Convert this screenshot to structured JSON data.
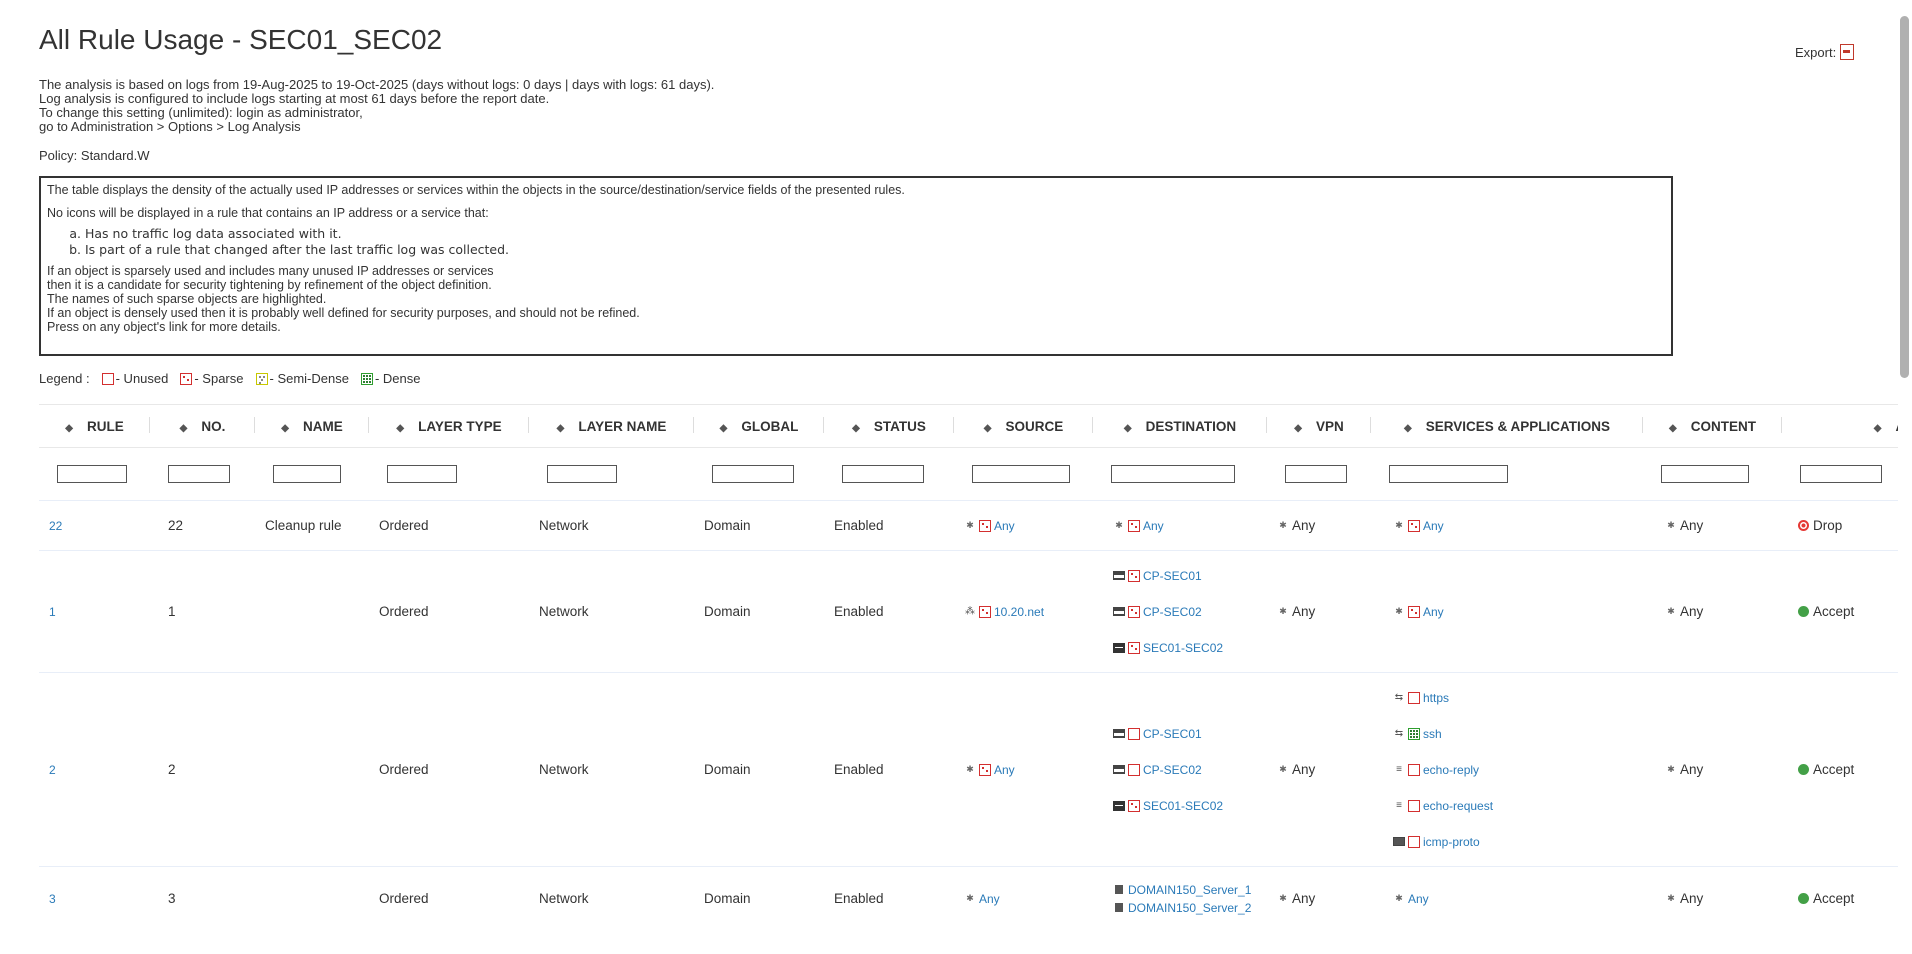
{
  "title": "All Rule Usage - SEC01_SEC02",
  "export_label": "Export:",
  "intro_lines": [
    "The analysis is based on logs from 19-Aug-2025 to 19-Oct-2025 (days without logs: 0 days | days with logs: 61 days).",
    "Log analysis is configured to include logs starting at most 61 days before the report date.",
    "To change this setting (unlimited): login as administrator,",
    "go to Administration > Options > Log Analysis"
  ],
  "policy": "Policy: Standard.W",
  "infobox": {
    "p1": "The table displays the density of the actually used IP addresses or services within the objects in the source/destination/service fields of the presented rules.",
    "p2": "No icons will be displayed in a rule that contains an IP address or a service that:",
    "items": [
      "Has no traffic log data associated with it.",
      "Is part of a rule that changed after the last traffic log was collected."
    ],
    "lines": [
      "If an object is sparsely used and includes many unused IP addresses or services",
      "then it is a candidate for security tightening by refinement of the object definition.",
      "The names of such sparse objects are highlighted.",
      "If an object is densely used then it is probably well defined for security purposes, and should not be refined.",
      "Press on any object's link for more details."
    ]
  },
  "legend": {
    "label": "Legend :",
    "unused": "- Unused",
    "sparse": "- Sparse",
    "semi": "- Semi-Dense",
    "dense": "- Dense"
  },
  "columns": [
    "RULE",
    "NO.",
    "NAME",
    "LAYER TYPE",
    "LAYER NAME",
    "GLOBAL",
    "STATUS",
    "SOURCE",
    "DESTINATION",
    "VPN",
    "SERVICES & APPLICATIONS",
    "CONTENT",
    "ACTION"
  ],
  "rows": [
    {
      "rule": "22",
      "no": "22",
      "name": "Cleanup rule",
      "layer_type": "Ordered",
      "layer_name": "Network",
      "global": "Domain",
      "status": "Enabled",
      "source": [
        {
          "icon": "asterisk-icon",
          "density": "sparse",
          "label": "Any"
        }
      ],
      "destination": [
        {
          "icon": "asterisk-icon",
          "density": "sparse",
          "label": "Any"
        }
      ],
      "vpn": "Any",
      "services": [
        {
          "icon": "asterisk-icon",
          "density": "sparse",
          "label": "Any"
        }
      ],
      "content": "Any",
      "action": "Drop",
      "action_color": "#e53935"
    },
    {
      "rule": "1",
      "no": "1",
      "name": "",
      "layer_type": "Ordered",
      "layer_name": "Network",
      "global": "Domain",
      "status": "Enabled",
      "source": [
        {
          "icon": "network-icon",
          "density": "sparse",
          "label": "10.20.net"
        }
      ],
      "destination": [
        {
          "icon": "gateway-icon",
          "density": "sparse",
          "label": "CP-SEC01"
        },
        {
          "icon": "gateway-icon",
          "density": "sparse",
          "label": "CP-SEC02"
        },
        {
          "icon": "cluster-icon",
          "density": "sparse",
          "label": "SEC01-SEC02"
        }
      ],
      "vpn": "Any",
      "services": [
        {
          "icon": "asterisk-icon",
          "density": "sparse",
          "label": "Any"
        }
      ],
      "content": "Any",
      "action": "Accept",
      "action_color": "#43a047"
    },
    {
      "rule": "2",
      "no": "2",
      "name": "",
      "layer_type": "Ordered",
      "layer_name": "Network",
      "global": "Domain",
      "status": "Enabled",
      "source": [
        {
          "icon": "asterisk-icon",
          "density": "sparse",
          "label": "Any"
        }
      ],
      "destination": [
        {
          "icon": "gateway-icon",
          "density": "unused",
          "label": "CP-SEC01"
        },
        {
          "icon": "gateway-icon",
          "density": "unused",
          "label": "CP-SEC02"
        },
        {
          "icon": "cluster-icon",
          "density": "sparse",
          "label": "SEC01-SEC02"
        }
      ],
      "vpn": "Any",
      "services": [
        {
          "icon": "tcp-service-icon",
          "density": "unused",
          "label": "https"
        },
        {
          "icon": "tcp-service-icon",
          "density": "dense",
          "label": "ssh"
        },
        {
          "icon": "icmp-service-icon",
          "density": "unused",
          "label": "echo-reply"
        },
        {
          "icon": "icmp-service-icon",
          "density": "unused",
          "label": "echo-request"
        },
        {
          "icon": "protocol-icon",
          "density": "unused",
          "label": "icmp-proto"
        }
      ],
      "content": "Any",
      "action": "Accept",
      "action_color": "#43a047"
    },
    {
      "rule": "3",
      "no": "3",
      "name": "",
      "layer_type": "Ordered",
      "layer_name": "Network",
      "global": "Domain",
      "status": "Enabled",
      "source": [
        {
          "icon": "asterisk-icon",
          "density": "none",
          "label": "Any"
        }
      ],
      "destination": [
        {
          "icon": "host-icon",
          "density": "none",
          "label": "DOMAIN150_Server_1"
        },
        {
          "icon": "host-icon",
          "density": "none",
          "label": "DOMAIN150_Server_2"
        }
      ],
      "vpn": "Any",
      "services": [
        {
          "icon": "asterisk-icon",
          "density": "none",
          "label": "Any"
        }
      ],
      "content": "Any",
      "action": "Accept",
      "action_color": "#43a047"
    }
  ]
}
